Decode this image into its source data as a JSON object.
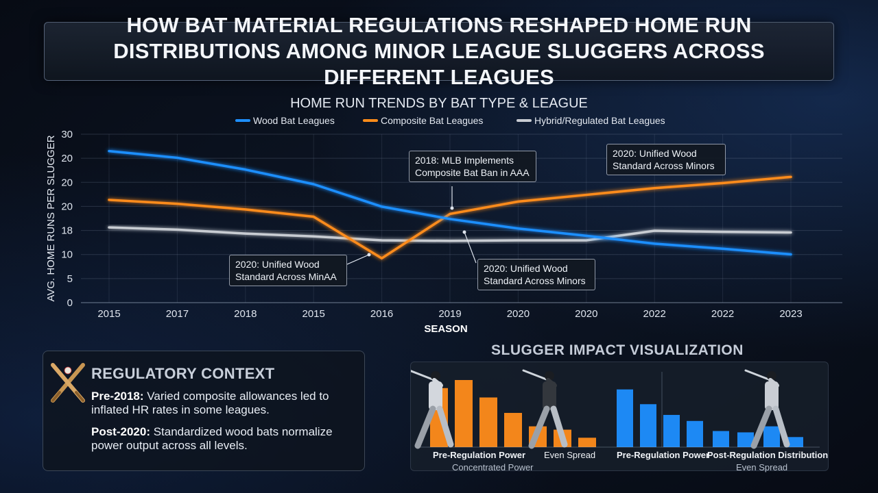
{
  "title": "HOW BAT MATERIAL REGULATIONS RESHAPED HOME RUN DISTRIBUTIONS AMONG MINOR LEAGUE SLUGGERS ACROSS DIFFERENT LEAGUES",
  "chart_data": {
    "type": "line",
    "title": "HOME RUN TRENDS BY BAT TYPE & LEAGUE",
    "xlabel": "SEASON",
    "ylabel": "AVG. HOME RUNS PER SLUGGER",
    "ytick_labels": [
      "0",
      "5",
      "10",
      "18",
      "20",
      "20",
      "20",
      "30"
    ],
    "x": [
      "2015",
      "2017",
      "2018",
      "2015",
      "2016",
      "2019",
      "2020",
      "2020",
      "2022",
      "2022",
      "2023"
    ],
    "series": [
      {
        "name": "Wood Bat Leagues",
        "color": "#1e8fff",
        "values": [
          27.0,
          25.8,
          23.7,
          21.1,
          17.1,
          14.9,
          13.2,
          11.9,
          10.5,
          9.6,
          8.6
        ]
      },
      {
        "name": "Composite Bat Leagues",
        "color": "#ff8c1a",
        "values": [
          18.3,
          17.6,
          16.6,
          15.3,
          7.9,
          15.8,
          18.0,
          19.2,
          20.4,
          21.3,
          22.4
        ]
      },
      {
        "name": "Hybrid/Regulated Bat Leagues",
        "color": "#c8ccd2",
        "values": [
          13.4,
          13.0,
          12.3,
          11.8,
          11.1,
          11.0,
          11.1,
          11.1,
          12.8,
          12.6,
          12.5
        ]
      }
    ],
    "ylim": [
      0,
      30
    ],
    "grid": true,
    "legend": "top-center",
    "annotations": [
      {
        "text": "2018: MLB Implements Composite Bat Ban in AAA"
      },
      {
        "text": "2020: Unified Wood Standard Across Minors"
      },
      {
        "text": "2020: Unified Wood Standard Across MinAA"
      },
      {
        "text": "2020: Unified Wood Standard Across Minors"
      }
    ]
  },
  "context": {
    "title": "REGULATORY CONTEXT",
    "p1_bold": "Pre-2018:",
    "p1_text": " Varied composite allowances led to inflated HR rates in some leagues.",
    "p2_bold": "Post-2020:",
    "p2_text": " Standardized wood bats normalize power output across all levels."
  },
  "impact": {
    "title": "SLUGGER IMPACT VISUALIZATION",
    "pre_bars": [
      88,
      100,
      74,
      51,
      31,
      26,
      14
    ],
    "post_bars": [
      86,
      64,
      48,
      39,
      24,
      22,
      31,
      15
    ],
    "pre_bar_color": "#ff8c1a",
    "post_bar_color": "#1e8fff",
    "label_pre_left": "Pre-Regulation Power",
    "label_even_left": "Even Spread",
    "label_concentrated": "Concentrated Power",
    "label_pre_right": "Pre-Regulation Power",
    "label_post_right": "Post-Regulation Distribution",
    "label_even_right": "Even Spread"
  }
}
